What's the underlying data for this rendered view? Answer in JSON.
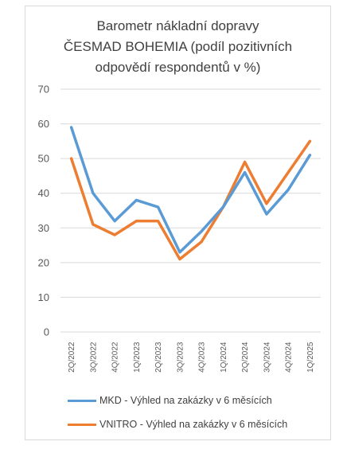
{
  "chart_data": {
    "type": "line",
    "title_lines": [
      "Barometr nákladní dopravy",
      "ČESMAD BOHEMIA (podíl pozitivních",
      "odpovědí respondentů v %)"
    ],
    "categories": [
      "2Q/2022",
      "3Q/2022",
      "4Q/2022",
      "1Q/2023",
      "2Q/2023",
      "3Q/2023",
      "4Q/2023",
      "1Q/2024",
      "2Q/2024",
      "3Q/2024",
      "4Q/2024",
      "1Q/2025"
    ],
    "y_ticks": [
      "0",
      "10",
      "20",
      "30",
      "40",
      "50",
      "60",
      "70"
    ],
    "ylim": [
      0,
      70
    ],
    "grid": true,
    "legend_position": "bottom",
    "series": [
      {
        "name": "MKD - Výhled na zakázky v 6 měsících",
        "color": "#5b9bd5",
        "values": [
          59,
          40,
          32,
          38,
          36,
          23,
          29,
          36,
          46,
          34,
          41,
          51
        ]
      },
      {
        "name": "VNITRO - Výhled na zakázky v 6 měsících",
        "color": "#ed7d31",
        "values": [
          50,
          31,
          28,
          32,
          32,
          21,
          26,
          36,
          49,
          37,
          46,
          55
        ]
      }
    ]
  }
}
